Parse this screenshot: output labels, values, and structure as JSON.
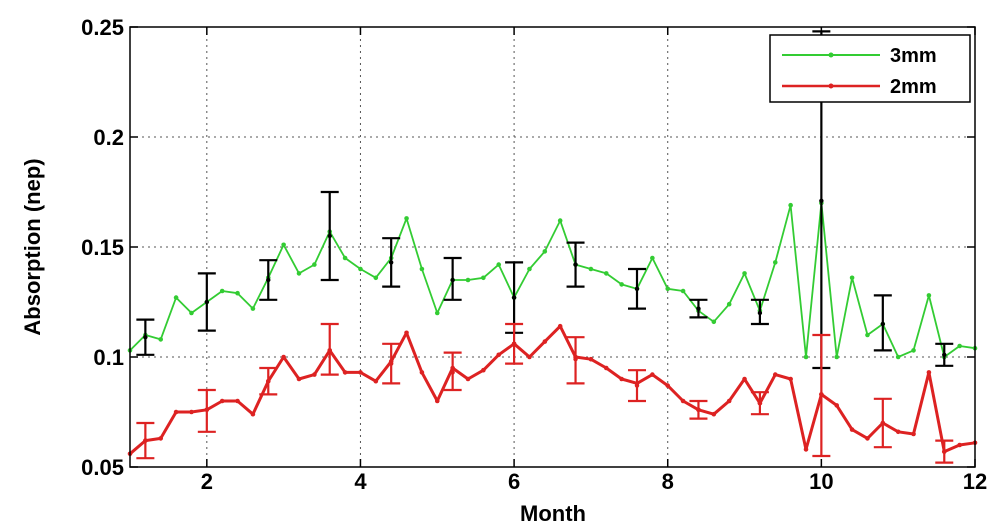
{
  "chart_data": {
    "type": "line",
    "title": "",
    "xlabel": "Month",
    "ylabel": "Absorption (nep)",
    "xlim": [
      1,
      12
    ],
    "ylim": [
      0.05,
      0.25
    ],
    "xticks": [
      2,
      4,
      6,
      8,
      10,
      12
    ],
    "yticks": [
      0.05,
      0.1,
      0.15,
      0.2,
      0.25
    ],
    "xtick_labels": [
      "2",
      "4",
      "6",
      "8",
      "10",
      "12"
    ],
    "ytick_labels": [
      "0.05",
      "0.1",
      "0.15",
      "0.2",
      "0.25"
    ],
    "grid": true,
    "legend_position": "top-right",
    "series": [
      {
        "name": "3mm",
        "color": "#33cc33",
        "x": [
          1.0,
          1.2,
          1.4,
          1.6,
          1.8,
          2.0,
          2.2,
          2.4,
          2.6,
          2.8,
          3.0,
          3.2,
          3.4,
          3.6,
          3.8,
          4.0,
          4.2,
          4.4,
          4.6,
          4.8,
          5.0,
          5.2,
          5.4,
          5.6,
          5.8,
          6.0,
          6.2,
          6.4,
          6.6,
          6.8,
          7.0,
          7.2,
          7.4,
          7.6,
          7.8,
          8.0,
          8.2,
          8.4,
          8.6,
          8.8,
          9.0,
          9.2,
          9.4,
          9.6,
          9.8,
          10.0,
          10.2,
          10.4,
          10.6,
          10.8,
          11.0,
          11.2,
          11.4,
          11.6,
          11.8,
          12.0
        ],
        "y": [
          0.103,
          0.11,
          0.108,
          0.127,
          0.12,
          0.125,
          0.13,
          0.129,
          0.122,
          0.136,
          0.151,
          0.138,
          0.142,
          0.157,
          0.145,
          0.14,
          0.136,
          0.145,
          0.163,
          0.14,
          0.12,
          0.135,
          0.135,
          0.136,
          0.142,
          0.127,
          0.14,
          0.148,
          0.162,
          0.142,
          0.14,
          0.138,
          0.133,
          0.131,
          0.145,
          0.131,
          0.13,
          0.121,
          0.116,
          0.124,
          0.138,
          0.121,
          0.143,
          0.169,
          0.1,
          0.17,
          0.1,
          0.136,
          0.11,
          0.115,
          0.1,
          0.103,
          0.128,
          0.1,
          0.105,
          0.104
        ]
      },
      {
        "name": "2mm",
        "color": "#dd2222",
        "x": [
          1.0,
          1.2,
          1.4,
          1.6,
          1.8,
          2.0,
          2.2,
          2.4,
          2.6,
          2.8,
          3.0,
          3.2,
          3.4,
          3.6,
          3.8,
          4.0,
          4.2,
          4.4,
          4.6,
          4.8,
          5.0,
          5.2,
          5.4,
          5.6,
          5.8,
          6.0,
          6.2,
          6.4,
          6.6,
          6.8,
          7.0,
          7.2,
          7.4,
          7.6,
          7.8,
          8.0,
          8.2,
          8.4,
          8.6,
          8.8,
          9.0,
          9.2,
          9.4,
          9.6,
          9.8,
          10.0,
          10.2,
          10.4,
          10.6,
          10.8,
          11.0,
          11.2,
          11.4,
          11.6,
          11.8,
          12.0
        ],
        "y": [
          0.056,
          0.062,
          0.063,
          0.075,
          0.075,
          0.076,
          0.08,
          0.08,
          0.074,
          0.089,
          0.1,
          0.09,
          0.092,
          0.103,
          0.093,
          0.093,
          0.089,
          0.098,
          0.111,
          0.093,
          0.08,
          0.095,
          0.09,
          0.094,
          0.101,
          0.106,
          0.1,
          0.107,
          0.114,
          0.1,
          0.099,
          0.095,
          0.09,
          0.088,
          0.092,
          0.087,
          0.08,
          0.076,
          0.074,
          0.08,
          0.09,
          0.079,
          0.092,
          0.09,
          0.058,
          0.083,
          0.078,
          0.067,
          0.063,
          0.07,
          0.066,
          0.065,
          0.093,
          0.057,
          0.06,
          0.061
        ]
      }
    ],
    "error_bars": [
      {
        "series": "3mm",
        "color": "#000000",
        "x": [
          1.2,
          2.0,
          2.8,
          3.6,
          4.4,
          5.2,
          6.0,
          6.8,
          7.6,
          8.4,
          9.2,
          10.0,
          10.8,
          11.6
        ],
        "y": [
          0.109,
          0.125,
          0.135,
          0.155,
          0.143,
          0.135,
          0.127,
          0.142,
          0.131,
          0.122,
          0.12,
          0.171,
          0.115,
          0.101
        ],
        "low": [
          0.101,
          0.112,
          0.126,
          0.135,
          0.132,
          0.126,
          0.111,
          0.132,
          0.122,
          0.118,
          0.115,
          0.095,
          0.103,
          0.096
        ],
        "high": [
          0.117,
          0.138,
          0.144,
          0.175,
          0.154,
          0.145,
          0.143,
          0.152,
          0.14,
          0.126,
          0.126,
          0.248,
          0.128,
          0.106
        ]
      },
      {
        "series": "2mm",
        "color": "#dd2222",
        "x": [
          1.2,
          2.0,
          2.8,
          3.6,
          4.4,
          5.2,
          6.0,
          6.8,
          7.6,
          8.4,
          9.2,
          10.0,
          10.8,
          11.6
        ],
        "y": [
          0.062,
          0.076,
          0.089,
          0.103,
          0.097,
          0.093,
          0.106,
          0.099,
          0.087,
          0.076,
          0.079,
          0.083,
          0.07,
          0.057
        ],
        "low": [
          0.054,
          0.066,
          0.083,
          0.092,
          0.088,
          0.085,
          0.097,
          0.088,
          0.08,
          0.072,
          0.074,
          0.055,
          0.059,
          0.052
        ],
        "high": [
          0.07,
          0.085,
          0.095,
          0.115,
          0.106,
          0.102,
          0.115,
          0.109,
          0.094,
          0.08,
          0.084,
          0.11,
          0.081,
          0.062
        ]
      }
    ]
  }
}
